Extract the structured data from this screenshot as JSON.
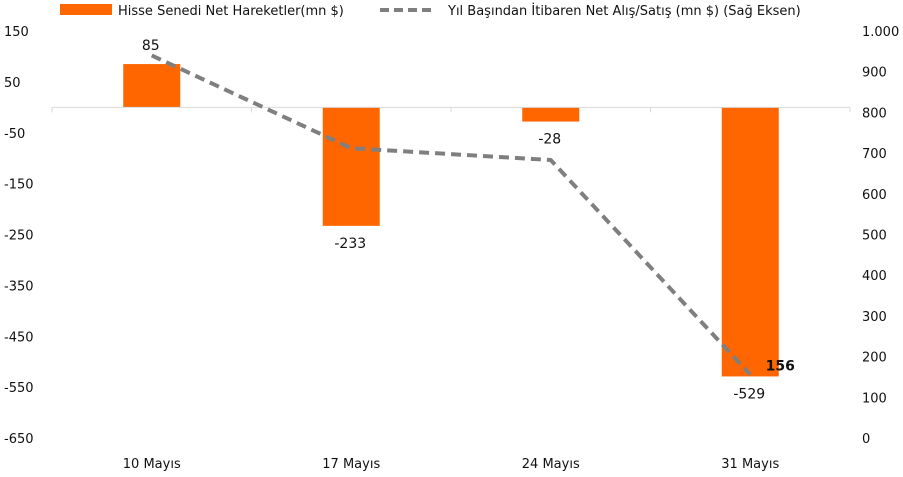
{
  "chart_data": {
    "type": "bar",
    "categories": [
      "10 Mayıs",
      "17 Mayıs",
      "24 Mayıs",
      "31 Mayıs"
    ],
    "series": [
      {
        "name": "Hisse Senedi Net Hareketler(mn $)",
        "type": "bar",
        "axis": "left",
        "color": "#FF6600",
        "values": [
          85,
          -233,
          -28,
          -529
        ],
        "labels": [
          "85",
          "-233",
          "-28",
          "-529"
        ]
      },
      {
        "name": "Yıl Başından İtibaren Net Alış/Satış (mn $) (Sağ Eksen)",
        "type": "line",
        "axis": "right",
        "style": "dashed",
        "color": "#7F7F7F",
        "values": [
          940,
          712,
          683,
          156
        ],
        "labels": [
          "",
          "",
          "",
          "156"
        ]
      }
    ],
    "y_left": {
      "ylim": [
        -650,
        150
      ],
      "ticks": [
        "150",
        "50",
        "-50",
        "-150",
        "-250",
        "-350",
        "-450",
        "-550",
        "-650"
      ],
      "tick_values": [
        150,
        50,
        -50,
        -150,
        -250,
        -350,
        -450,
        -550,
        -650
      ]
    },
    "y_right": {
      "ylim": [
        0,
        1000
      ],
      "ticks": [
        "1.000",
        "900",
        "800",
        "700",
        "600",
        "500",
        "400",
        "300",
        "200",
        "100",
        "0"
      ],
      "tick_values": [
        1000,
        900,
        800,
        700,
        600,
        500,
        400,
        300,
        200,
        100,
        0
      ]
    },
    "grid": false,
    "legend": "top",
    "title": "",
    "xlabel": "",
    "ylabel": ""
  }
}
